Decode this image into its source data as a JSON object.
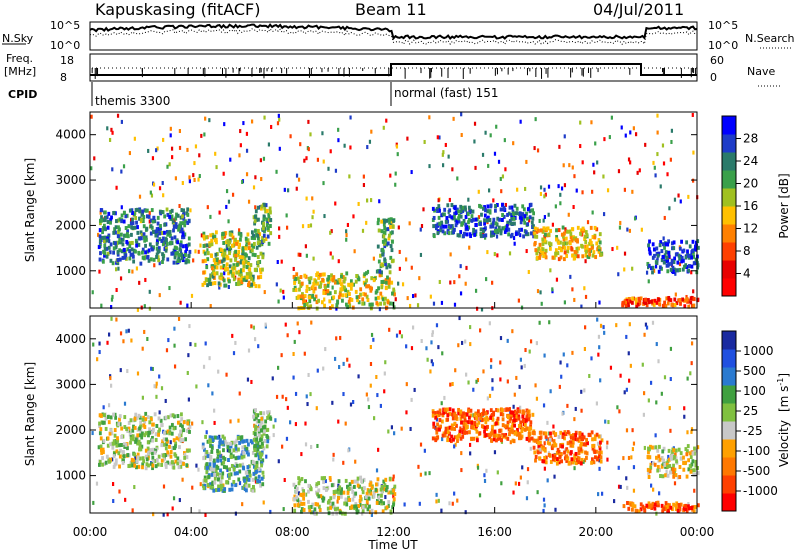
{
  "header": {
    "station": "Kapuskasing (fitACF)",
    "beam": "Beam 11",
    "date": "04/Jul/2011"
  },
  "noise_panel": {
    "left_label": "N.Sky",
    "left_ticks": [
      "10^5",
      "10^0"
    ],
    "right_label": "N.Search",
    "right_ticks": [
      "10^5",
      "10^0"
    ]
  },
  "freq_panel": {
    "left_label_1": "Freq.",
    "left_label_2": "[MHz]",
    "left_ticks": [
      "18",
      "8"
    ],
    "right_label": "Nave",
    "right_ticks": [
      "60",
      "0"
    ]
  },
  "cpid_panel": {
    "label": "CPID",
    "segments": [
      {
        "start_hour": 0,
        "text": "themis 3300"
      },
      {
        "start_hour": 12,
        "text": "normal (fast) 151"
      }
    ]
  },
  "x_axis": {
    "ticks": [
      "00:00",
      "04:00",
      "08:00",
      "12:00",
      "16:00",
      "20:00",
      "00:00"
    ],
    "label": "Time UT"
  },
  "range_axis": {
    "label": "Slant Range [km]",
    "ticks": [
      "4000",
      "3000",
      "2000",
      "1000"
    ]
  },
  "power_colorbar": {
    "label": "Power [dB]",
    "ticks": [
      "28",
      "24",
      "20",
      "16",
      "12",
      "8",
      "4"
    ],
    "colors": [
      "#0000ff",
      "#1e3cc8",
      "#2a7a6a",
      "#3aa04a",
      "#a0c020",
      "#ffc000",
      "#ff8000",
      "#ff4000",
      "#e80000",
      "#ff0000"
    ]
  },
  "velocity_colorbar": {
    "label_1": "Velocity",
    "label_2": "[m s",
    "label_sup": "-1",
    "label_3": "]",
    "ticks": [
      "1000",
      "500",
      "100",
      "25",
      "-25",
      "-100",
      "-500",
      "-1000"
    ],
    "colors": [
      "#1a2aa0",
      "#2050e0",
      "#2a7ad0",
      "#40a040",
      "#80c040",
      "#c8c8c8",
      "#ffa000",
      "#ff7800",
      "#ff4000",
      "#ff0000"
    ]
  },
  "chart_data": [
    {
      "type": "heatmap",
      "name": "Power",
      "x_range_hours": [
        0,
        24
      ],
      "y_range_km": [
        180,
        4500
      ],
      "regions": [
        {
          "t": [
            0.3,
            3.9
          ],
          "r": [
            1200,
            2400
          ],
          "level": 0.25,
          "density": 0.55
        },
        {
          "t": [
            4.4,
            6.8
          ],
          "r": [
            700,
            1900
          ],
          "level": 0.45,
          "density": 0.6
        },
        {
          "t": [
            6.4,
            7.1
          ],
          "r": [
            1600,
            2500
          ],
          "level": 0.35,
          "density": 0.6
        },
        {
          "t": [
            8.0,
            12.0
          ],
          "r": [
            200,
            1000
          ],
          "level": 0.5,
          "density": 0.45
        },
        {
          "t": [
            11.3,
            12.0
          ],
          "r": [
            1000,
            2200
          ],
          "level": 0.35,
          "density": 0.5
        },
        {
          "t": [
            13.5,
            17.5
          ],
          "r": [
            1800,
            2500
          ],
          "level": 0.2,
          "density": 0.6
        },
        {
          "t": [
            17.5,
            20.2
          ],
          "r": [
            1300,
            2000
          ],
          "level": 0.55,
          "density": 0.6
        },
        {
          "t": [
            21.0,
            24.0
          ],
          "r": [
            250,
            450
          ],
          "level": 0.75,
          "density": 0.9
        },
        {
          "t": [
            22.0,
            24.0
          ],
          "r": [
            1000,
            1700
          ],
          "level": 0.15,
          "density": 0.55
        }
      ]
    },
    {
      "type": "heatmap",
      "name": "Velocity",
      "x_range_hours": [
        0,
        24
      ],
      "y_range_km": [
        180,
        4500
      ],
      "regions": [
        {
          "t": [
            0.3,
            3.9
          ],
          "r": [
            1200,
            2400
          ],
          "level": 0.5,
          "density": 0.5
        },
        {
          "t": [
            4.4,
            6.8
          ],
          "r": [
            700,
            1900
          ],
          "level": 0.38,
          "density": 0.6
        },
        {
          "t": [
            6.4,
            7.1
          ],
          "r": [
            1600,
            2500
          ],
          "level": 0.45,
          "density": 0.6
        },
        {
          "t": [
            8.0,
            12.0
          ],
          "r": [
            200,
            1000
          ],
          "level": 0.5,
          "density": 0.45
        },
        {
          "t": [
            13.5,
            17.5
          ],
          "r": [
            1800,
            2500
          ],
          "level": 0.78,
          "density": 0.7
        },
        {
          "t": [
            17.5,
            20.2
          ],
          "r": [
            1300,
            2000
          ],
          "level": 0.75,
          "density": 0.65
        },
        {
          "t": [
            21.0,
            24.0
          ],
          "r": [
            250,
            450
          ],
          "level": 0.78,
          "density": 0.9
        },
        {
          "t": [
            22.0,
            24.0
          ],
          "r": [
            1000,
            1700
          ],
          "level": 0.55,
          "density": 0.5
        }
      ]
    }
  ]
}
